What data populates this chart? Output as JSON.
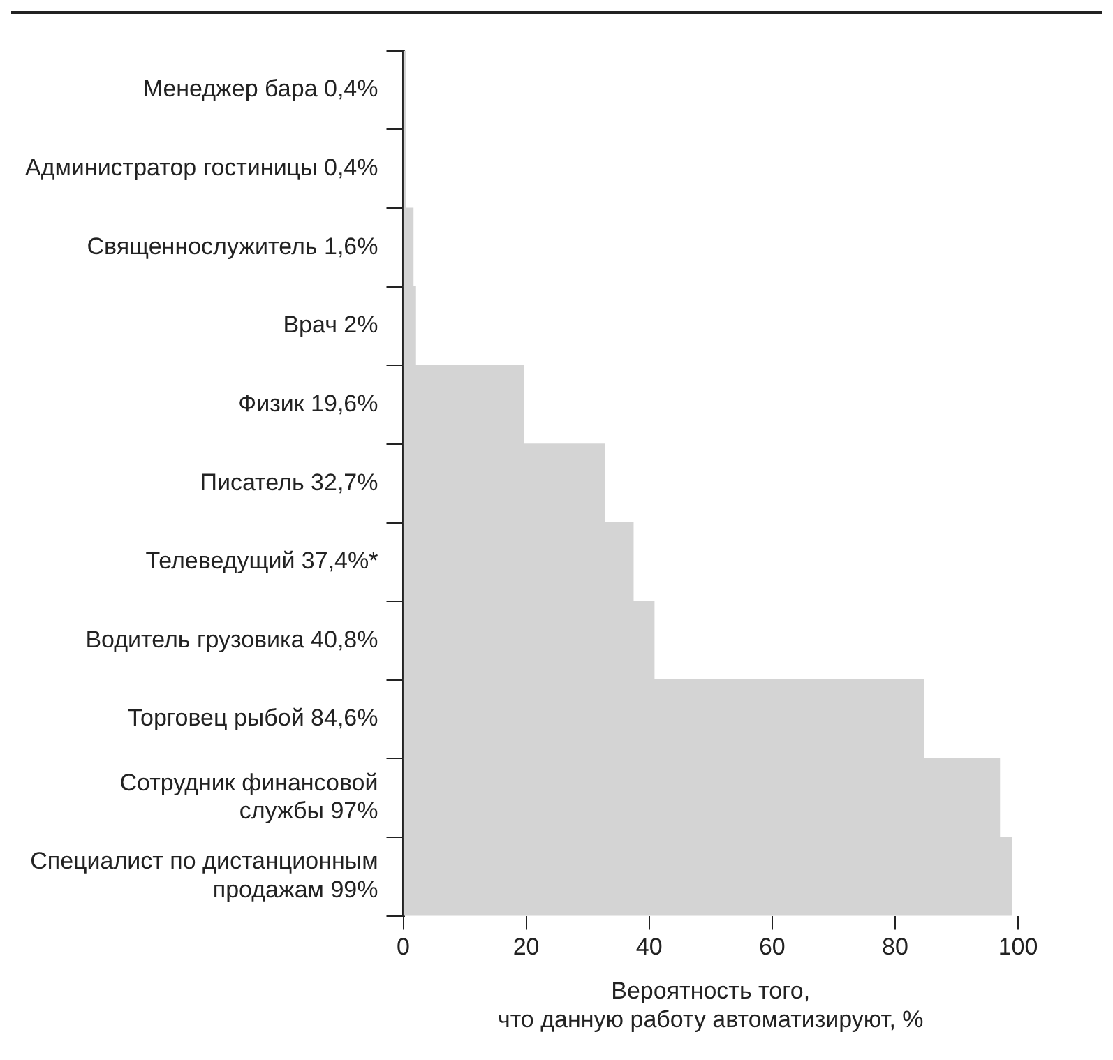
{
  "chart_data": {
    "type": "bar",
    "orientation": "horizontal",
    "xlabel": "Вероятность того,\nчто данную работу автоматизируют, %",
    "categories": [
      "Менеджер бара 0,4%",
      "Администратор гостиницы 0,4%",
      "Священнослужитель 1,6%",
      "Врач 2%",
      "Физик 19,6%",
      "Писатель 32,7%",
      "Телеведущий 37,4%*",
      "Водитель грузовика 40,8%",
      "Торговец рыбой 84,6%",
      "Сотрудник финансовой\nслужбы 97%",
      "Специалист по дистанционным\nпродажам 99%"
    ],
    "values": [
      0.4,
      0.4,
      1.6,
      2,
      19.6,
      32.7,
      37.4,
      40.8,
      84.6,
      97,
      99
    ],
    "color": "#d4d4d4",
    "xlim": [
      0,
      100
    ],
    "xticks": [
      0,
      20,
      40,
      60,
      80,
      100
    ],
    "grid": false,
    "legend": false
  }
}
